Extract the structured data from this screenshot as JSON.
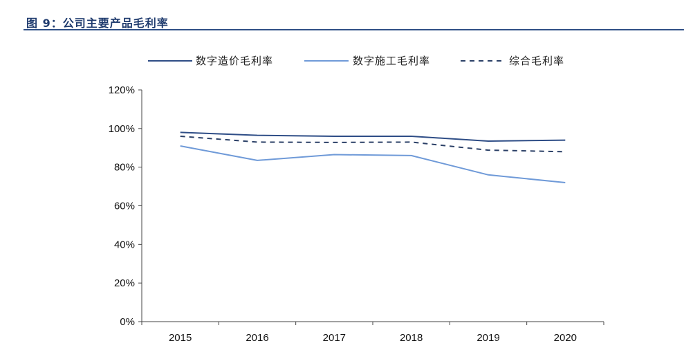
{
  "figure": {
    "title": "图 9：公司主要产品毛利率"
  },
  "colors": {
    "title": "#1f3b6e",
    "rule": "#2f4f86",
    "axis": "#444444"
  },
  "chart_data": {
    "type": "line",
    "title": "",
    "xlabel": "",
    "ylabel": "",
    "categories": [
      "2015",
      "2016",
      "2017",
      "2018",
      "2019",
      "2020"
    ],
    "ylim": [
      0,
      120
    ],
    "yticks": [
      0,
      20,
      40,
      60,
      80,
      100,
      120
    ],
    "ytick_labels": [
      "0%",
      "20%",
      "40%",
      "60%",
      "80%",
      "100%",
      "120%"
    ],
    "grid": false,
    "legend_position": "top",
    "series": [
      {
        "name": "数字造价毛利率",
        "values": [
          98,
          96.5,
          96,
          96,
          93.5,
          94
        ],
        "color": "#2e4d86",
        "dash": "solid"
      },
      {
        "name": "数字施工毛利率",
        "values": [
          91,
          83.5,
          86.5,
          86,
          76,
          72
        ],
        "color": "#6f9ad8",
        "dash": "solid"
      },
      {
        "name": "综合毛利率",
        "values": [
          96,
          93,
          92.8,
          93,
          88.8,
          88
        ],
        "color": "#2a3f66",
        "dash": "dashed"
      }
    ]
  }
}
